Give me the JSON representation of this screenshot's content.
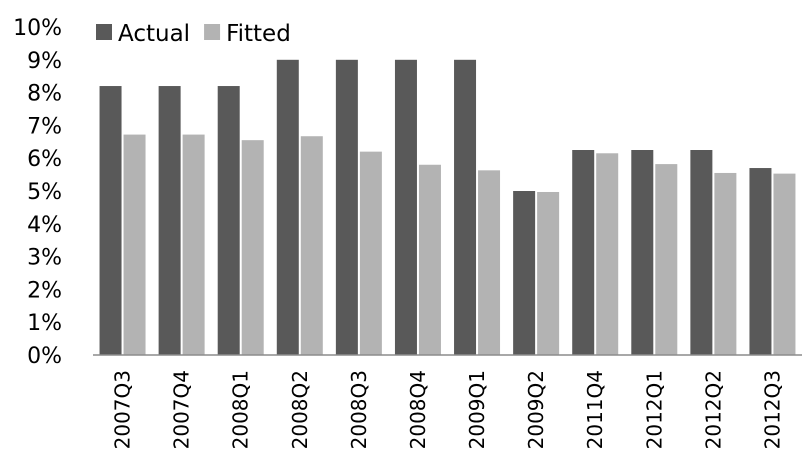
{
  "chart_data": {
    "type": "bar",
    "title": "",
    "xlabel": "",
    "ylabel": "",
    "categories": [
      "2007Q3",
      "2007Q4",
      "2008Q1",
      "2008Q2",
      "2008Q3",
      "2008Q4",
      "2009Q1",
      "2009Q2",
      "2011Q4",
      "2012Q1",
      "2012Q2",
      "2012Q3"
    ],
    "series": [
      {
        "name": "Actual",
        "color": "#595959",
        "values": [
          8.2,
          8.2,
          8.2,
          9.0,
          9.0,
          9.0,
          9.0,
          5.0,
          6.25,
          6.25,
          6.25,
          5.7
        ]
      },
      {
        "name": "Fitted",
        "color": "#b3b3b3",
        "values": [
          6.72,
          6.72,
          6.55,
          6.67,
          6.2,
          5.8,
          5.63,
          4.97,
          6.15,
          5.82,
          5.55,
          5.53
        ]
      }
    ],
    "ylim": [
      0,
      10
    ],
    "yticks": [
      "0%",
      "1%",
      "2%",
      "3%",
      "4%",
      "5%",
      "6%",
      "7%",
      "8%",
      "9%",
      "10%"
    ],
    "grid": false,
    "legend_position": "top-left"
  }
}
